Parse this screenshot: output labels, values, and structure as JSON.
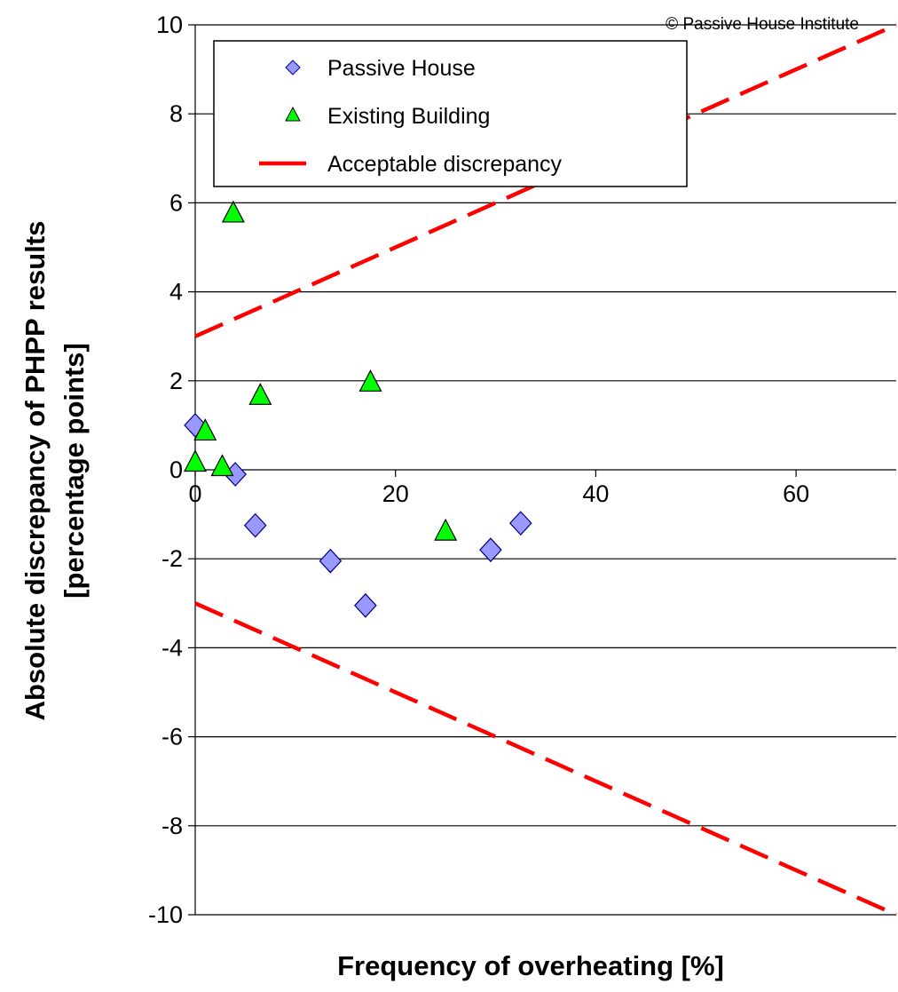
{
  "chart_data": {
    "type": "scatter",
    "copyright": "© Passive House Institute",
    "xlabel": "Frequency of overheating [%]",
    "ylabel_lines": [
      "Absolute discrepancy of PHPP results",
      "[percentage points]"
    ],
    "xlim": [
      0,
      70
    ],
    "ylim": [
      -10,
      10
    ],
    "x_ticks": [
      0,
      20,
      40,
      60
    ],
    "y_ticks": [
      -10,
      -8,
      -6,
      -4,
      -2,
      0,
      2,
      4,
      6,
      8,
      10
    ],
    "grid": "horizontal",
    "legend_position": "top-left",
    "series": [
      {
        "name": "Passive House",
        "marker": "diamond",
        "color": "#9999ff",
        "points": [
          {
            "x": 0,
            "y": 1.0
          },
          {
            "x": 4,
            "y": -0.1
          },
          {
            "x": 6,
            "y": -1.25
          },
          {
            "x": 13.5,
            "y": -2.05
          },
          {
            "x": 17,
            "y": -3.05
          },
          {
            "x": 29.5,
            "y": -1.8
          },
          {
            "x": 32.5,
            "y": -1.2
          }
        ]
      },
      {
        "name": "Existing Building",
        "marker": "triangle",
        "color": "#00ff00",
        "points": [
          {
            "x": 0,
            "y": 0.15
          },
          {
            "x": 1,
            "y": 0.85
          },
          {
            "x": 2.7,
            "y": 0.05
          },
          {
            "x": 3.8,
            "y": 5.75
          },
          {
            "x": 6.5,
            "y": 1.65
          },
          {
            "x": 17.5,
            "y": 1.95
          },
          {
            "x": 25,
            "y": -1.4
          }
        ]
      },
      {
        "name": "Acceptable discrepancy",
        "marker": "dashed-line",
        "color": "#ff0000",
        "lines": [
          [
            {
              "x": 0,
              "y": 3
            },
            {
              "x": 70,
              "y": 10
            }
          ],
          [
            {
              "x": 0,
              "y": -3
            },
            {
              "x": 70,
              "y": -10
            }
          ]
        ]
      }
    ]
  }
}
